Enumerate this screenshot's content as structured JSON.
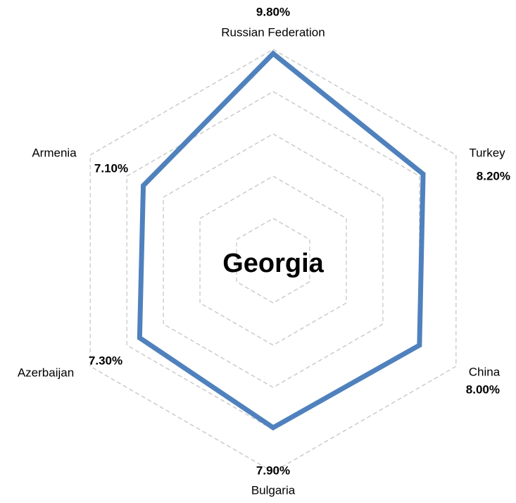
{
  "chart_data": {
    "type": "radar",
    "title": "Georgia",
    "categories": [
      "Russian Federation",
      "Turkey",
      "China",
      "Bulgaria",
      "Azerbaijan",
      "Armenia"
    ],
    "values": [
      9.8,
      8.2,
      8.0,
      7.9,
      7.3,
      7.1
    ],
    "value_labels": [
      "9.80%",
      "8.20%",
      "8.00%",
      "7.90%",
      "7.30%",
      "7.10%"
    ],
    "color": "#4f81bd",
    "ylim": [
      0,
      10
    ],
    "yticks": [
      0,
      2,
      4,
      6,
      8,
      10
    ],
    "grid": true
  }
}
